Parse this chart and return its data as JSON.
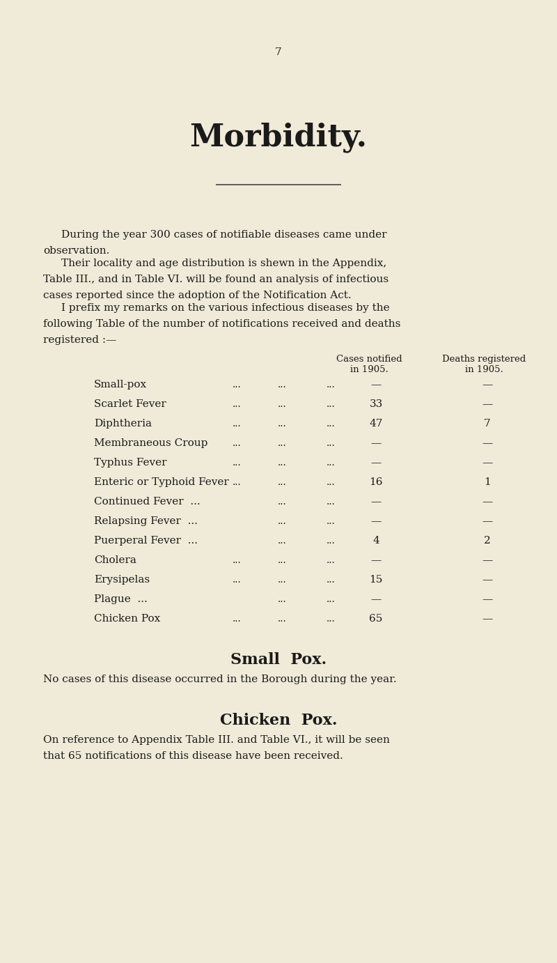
{
  "bg_color": "#f0ead8",
  "page_number": "7",
  "title": "Morbidity.",
  "text_color": "#1a1a1a",
  "separator_color": "#444444",
  "para1_indent": "During the year 300 cases of notifiable diseases came under",
  "para1_cont": "observation.",
  "para2_indent": "Their locality and age distribution is shewn in the Appendix,",
  "para2_line2": "Table III., and in Table VI. will be found an analysis of infectious",
  "para2_line3": "cases reported since the adoption of the Notification Act.",
  "para3_indent": "I prefix my remarks on the various infectious diseases by the",
  "para3_line2": "following Table of the number of notifications received and deaths",
  "para3_line3": "registered :—",
  "col1_line1": "Cases notified",
  "col1_line2": "in 1905.",
  "col2_line1": "Deaths registered",
  "col2_line2": "in 1905.",
  "diseases": [
    "Small-pox",
    "Scarlet Fever",
    "Diphtheria",
    "Membraneous Croup",
    "Typhus Fever",
    "Enteric or Typhoid Fever",
    "Continued Fever  ...",
    "Relapsing Fever  ...",
    "Puerperal Fever  ...",
    "Cholera",
    "Erysipelas",
    "Plague  ...",
    "Chicken Pox"
  ],
  "cases": [
    "—",
    "33",
    "47",
    "—",
    "—",
    "16",
    "—",
    "—",
    "4",
    "—",
    "15",
    "—",
    "65"
  ],
  "deaths": [
    "—",
    "—",
    "7",
    "—",
    "—",
    "1",
    "—",
    "—",
    "2",
    "—",
    "—",
    "—",
    "—"
  ],
  "show_dots": [
    true,
    true,
    true,
    true,
    true,
    true,
    false,
    false,
    false,
    true,
    true,
    false,
    true
  ],
  "section1_title": "Small  Pox.",
  "section1_body": "No cases of this disease occurred in the Borough during the year.",
  "section2_title": "Chicken  Pox.",
  "section2_body1": "On reference to Appendix Table III. and Table VI., it will be seen",
  "section2_body2": "that 65 notifications of this disease have been received."
}
